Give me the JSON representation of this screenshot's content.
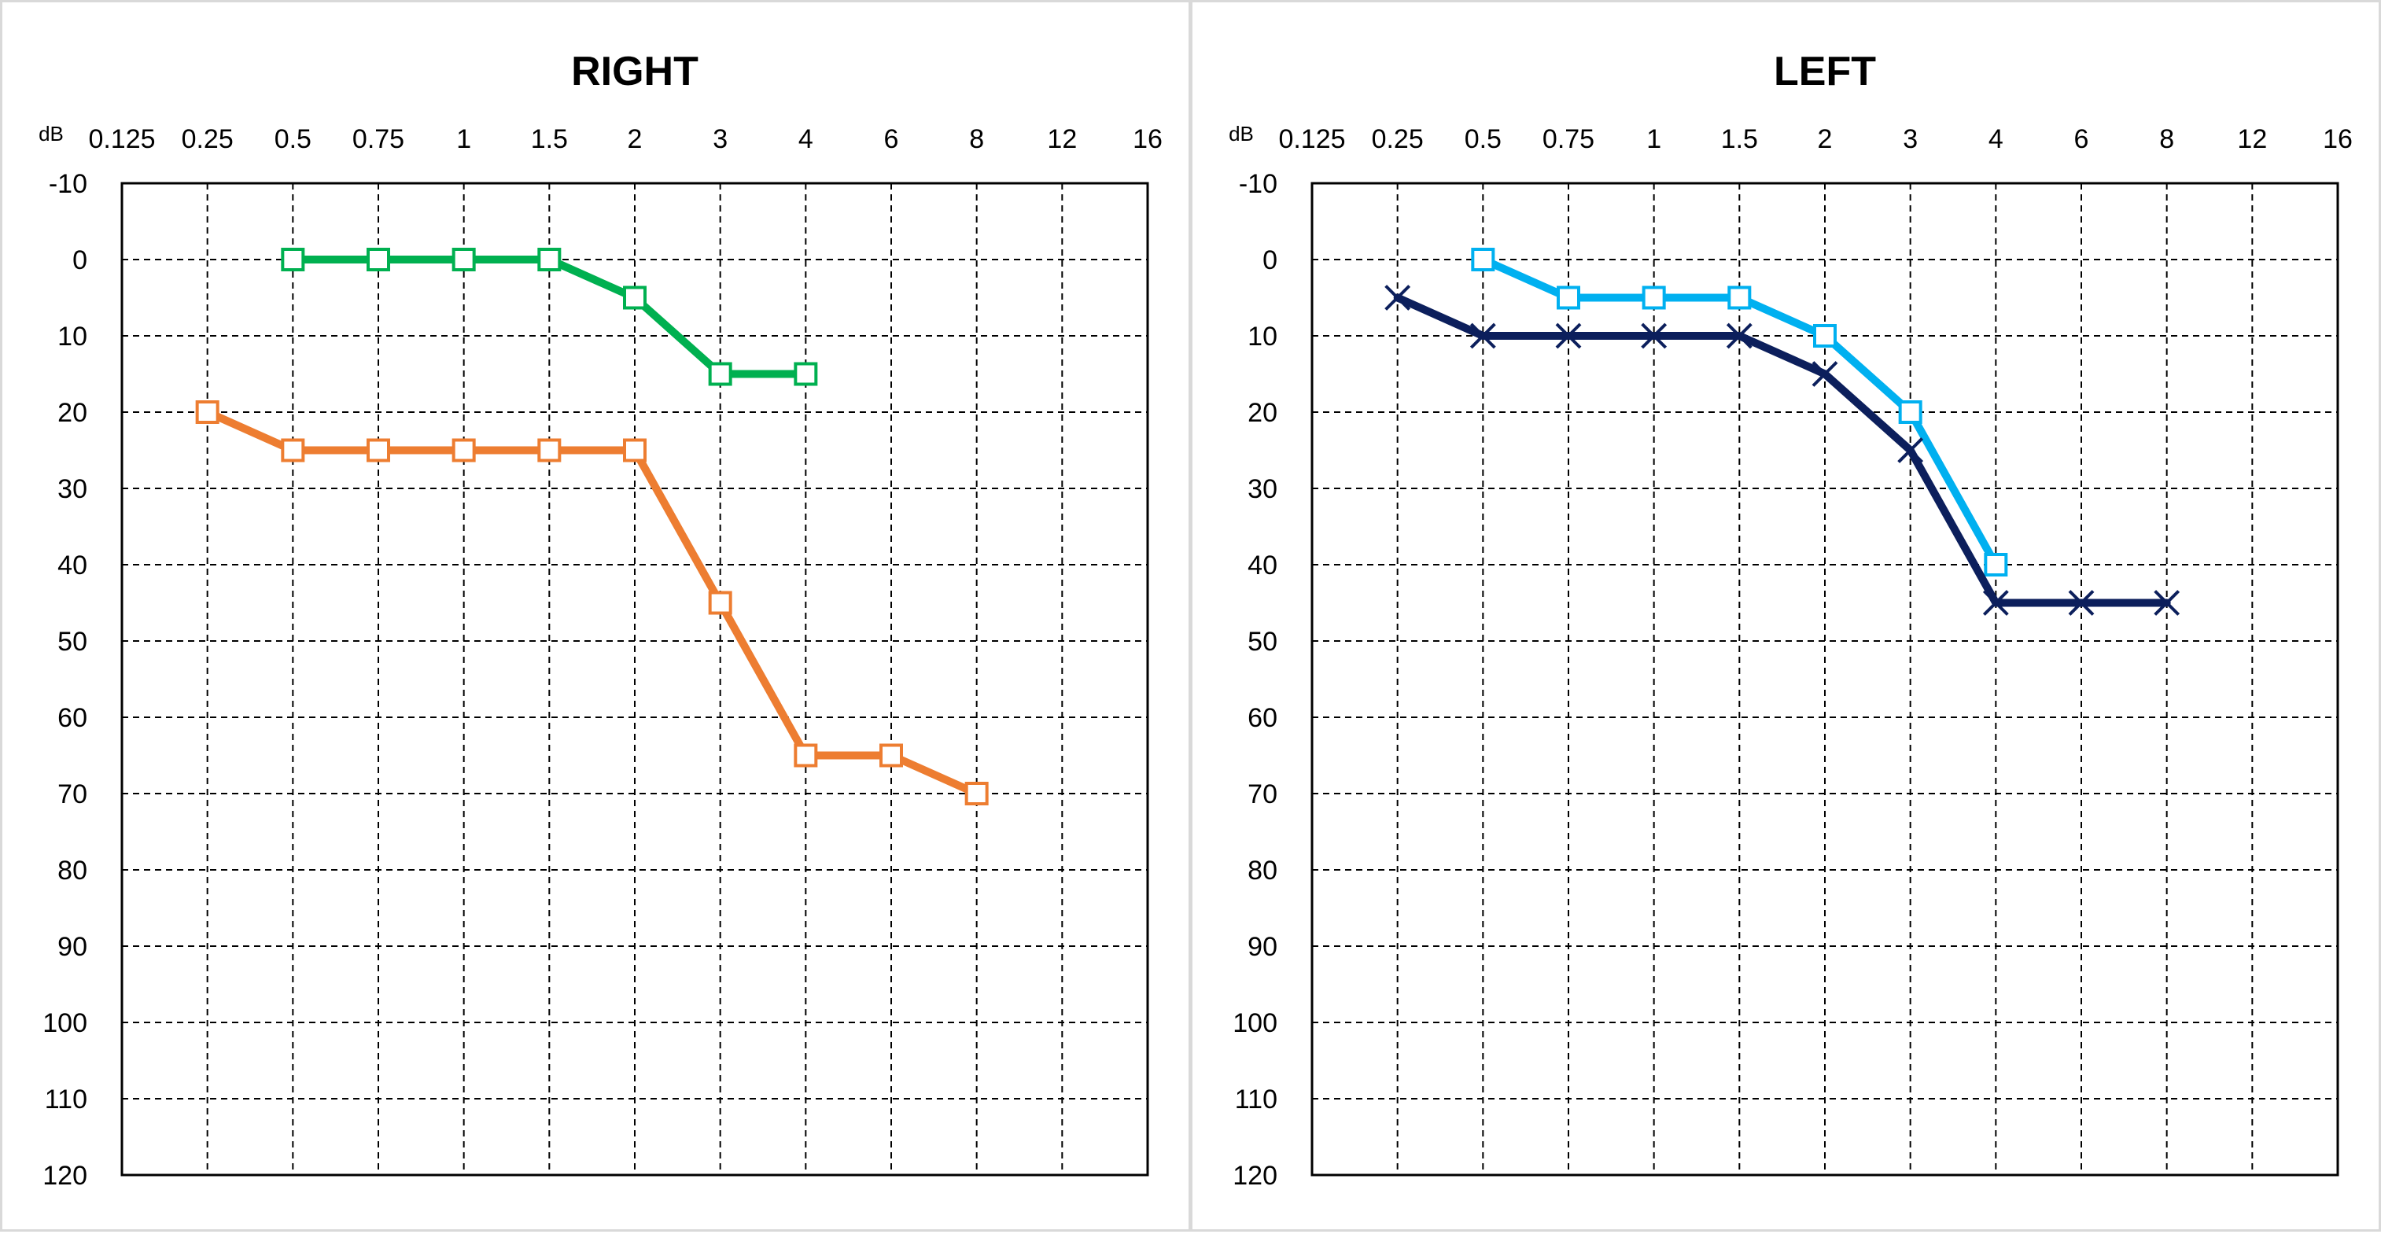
{
  "chart_data": [
    {
      "type": "line",
      "title": "RIGHT",
      "unit_label": "dB",
      "x_tick_labels": [
        "0.125",
        "0.25",
        "0.5",
        "0.75",
        "1",
        "1.5",
        "2",
        "3",
        "4",
        "6",
        "8",
        "12",
        "16"
      ],
      "y_tick_labels": [
        "-10",
        "0",
        "10",
        "20",
        "30",
        "40",
        "50",
        "60",
        "70",
        "80",
        "90",
        "100",
        "110",
        "120"
      ],
      "ylim": [
        -10,
        120
      ],
      "y_reversed": true,
      "grid": true,
      "series": [
        {
          "color": "#00b050",
          "marker": "square",
          "x": [
            "0.5",
            "0.75",
            "1",
            "1.5",
            "2",
            "3",
            "4"
          ],
          "y": [
            0,
            0,
            0,
            0,
            5,
            15,
            15
          ]
        },
        {
          "color": "#ed7d31",
          "marker": "square",
          "x": [
            "0.25",
            "0.5",
            "0.75",
            "1",
            "1.5",
            "2",
            "3",
            "4",
            "6",
            "8"
          ],
          "y": [
            20,
            25,
            25,
            25,
            25,
            25,
            45,
            65,
            65,
            70
          ]
        }
      ]
    },
    {
      "type": "line",
      "title": "LEFT",
      "unit_label": "dB",
      "x_tick_labels": [
        "0.125",
        "0.25",
        "0.5",
        "0.75",
        "1",
        "1.5",
        "2",
        "3",
        "4",
        "6",
        "8",
        "12",
        "16"
      ],
      "y_tick_labels": [
        "-10",
        "0",
        "10",
        "20",
        "30",
        "40",
        "50",
        "60",
        "70",
        "80",
        "90",
        "100",
        "110",
        "120"
      ],
      "ylim": [
        -10,
        120
      ],
      "y_reversed": true,
      "grid": true,
      "series": [
        {
          "color": "#00b0f0",
          "marker": "square",
          "x": [
            "0.5",
            "0.75",
            "1",
            "1.5",
            "2",
            "3",
            "4"
          ],
          "y": [
            0,
            5,
            5,
            5,
            10,
            20,
            40
          ]
        },
        {
          "color": "#0c1f5c",
          "marker": "cross",
          "x": [
            "0.25",
            "0.5",
            "0.75",
            "1",
            "1.5",
            "2",
            "3",
            "4",
            "6",
            "8"
          ],
          "y": [
            5,
            10,
            10,
            10,
            10,
            15,
            25,
            45,
            45,
            45
          ]
        }
      ]
    }
  ]
}
